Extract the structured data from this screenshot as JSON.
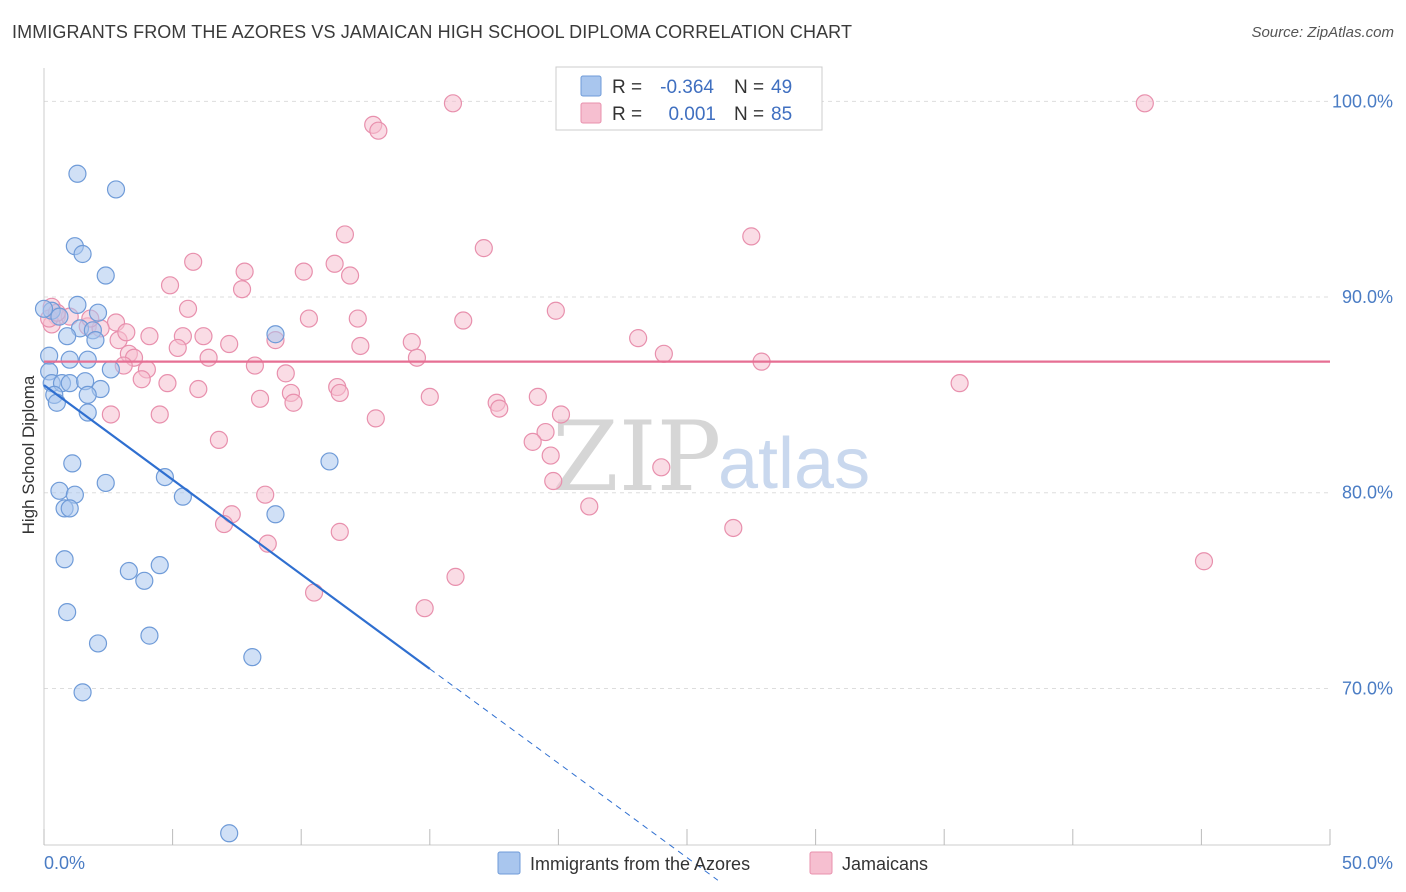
{
  "title": "IMMIGRANTS FROM THE AZORES VS JAMAICAN HIGH SCHOOL DIPLOMA CORRELATION CHART",
  "source": "Source: ZipAtlas.com",
  "watermark": {
    "zip": "ZIP",
    "atlas": "atlas"
  },
  "colors": {
    "blue_fill": "#a9c6ee",
    "blue_stroke": "#6f9bd8",
    "blue_line": "#2f6fd0",
    "pink_fill": "#f6bfd0",
    "pink_stroke": "#e890ad",
    "pink_line": "#e66f93",
    "tick_text": "#4a7cc4",
    "grid": "#dddddd"
  },
  "legend": {
    "rows": [
      {
        "r_label": "R =",
        "r_value": "-0.364",
        "n_label": "N =",
        "n_value": "49"
      },
      {
        "r_label": "R =",
        "r_value": "0.001",
        "n_label": "N =",
        "n_value": "85"
      }
    ]
  },
  "chart_data": {
    "type": "scatter",
    "title": "IMMIGRANTS FROM THE AZORES VS JAMAICAN HIGH SCHOOL DIPLOMA CORRELATION CHART",
    "xlabel": "",
    "ylabel": "High School Diploma",
    "xlim": [
      0,
      50
    ],
    "ylim": [
      62,
      101.5
    ],
    "x_tick_labels": [
      "0.0%",
      "50.0%"
    ],
    "y_ticks": [
      70,
      80,
      90,
      100
    ],
    "y_tick_labels": [
      "70.0%",
      "80.0%",
      "90.0%",
      "100.0%"
    ],
    "grid": true,
    "legend_position": "top-center",
    "series": [
      {
        "name": "Immigrants from the Azores",
        "r": -0.364,
        "n": 49,
        "trend": {
          "x0": 0.0,
          "y0": 85.5,
          "x1": 15.0,
          "y1": 71.0,
          "dash_to_x": 26.2,
          "dash_to_y": 60.2
        },
        "points": [
          [
            1.3,
            96.3
          ],
          [
            2.8,
            95.5
          ],
          [
            1.2,
            92.6
          ],
          [
            1.5,
            92.2
          ],
          [
            2.4,
            91.1
          ],
          [
            1.3,
            89.6
          ],
          [
            2.1,
            89.2
          ],
          [
            0.3,
            89.3
          ],
          [
            0.6,
            89.0
          ],
          [
            1.4,
            88.4
          ],
          [
            1.9,
            88.3
          ],
          [
            0.9,
            88.0
          ],
          [
            2.0,
            87.8
          ],
          [
            9.0,
            88.1
          ],
          [
            0.2,
            87.0
          ],
          [
            1.0,
            86.8
          ],
          [
            1.7,
            86.8
          ],
          [
            2.6,
            86.3
          ],
          [
            0.2,
            86.2
          ],
          [
            0.3,
            85.6
          ],
          [
            0.7,
            85.6
          ],
          [
            1.0,
            85.6
          ],
          [
            1.6,
            85.7
          ],
          [
            2.2,
            85.3
          ],
          [
            0.4,
            85.0
          ],
          [
            0.5,
            84.6
          ],
          [
            1.7,
            84.1
          ],
          [
            1.7,
            85.0
          ],
          [
            1.1,
            81.5
          ],
          [
            11.1,
            81.6
          ],
          [
            4.7,
            80.8
          ],
          [
            2.4,
            80.5
          ],
          [
            0.6,
            80.1
          ],
          [
            1.2,
            79.9
          ],
          [
            5.4,
            79.8
          ],
          [
            0.8,
            79.2
          ],
          [
            1.0,
            79.2
          ],
          [
            9.0,
            78.9
          ],
          [
            0.8,
            76.6
          ],
          [
            3.3,
            76.0
          ],
          [
            4.5,
            76.3
          ],
          [
            3.9,
            75.5
          ],
          [
            0.9,
            73.9
          ],
          [
            2.1,
            72.3
          ],
          [
            4.1,
            72.7
          ],
          [
            8.1,
            71.6
          ],
          [
            1.5,
            69.8
          ],
          [
            7.2,
            62.6
          ],
          [
            0.0,
            89.4
          ]
        ]
      },
      {
        "name": "Jamaicans",
        "r": 0.001,
        "n": 85,
        "trend": {
          "x0": 0.0,
          "y0": 86.7,
          "x1": 50.0,
          "y1": 86.7
        },
        "points": [
          [
            15.9,
            99.9
          ],
          [
            26.3,
            99.9
          ],
          [
            42.8,
            99.9
          ],
          [
            12.8,
            98.8
          ],
          [
            13.0,
            98.5
          ],
          [
            11.7,
            93.2
          ],
          [
            27.5,
            93.1
          ],
          [
            17.1,
            92.5
          ],
          [
            5.8,
            91.8
          ],
          [
            11.3,
            91.7
          ],
          [
            7.8,
            91.3
          ],
          [
            10.1,
            91.3
          ],
          [
            11.9,
            91.1
          ],
          [
            4.9,
            90.6
          ],
          [
            7.7,
            90.4
          ],
          [
            0.3,
            89.5
          ],
          [
            0.5,
            89.0
          ],
          [
            1.0,
            89.0
          ],
          [
            1.7,
            88.5
          ],
          [
            0.3,
            88.6
          ],
          [
            5.6,
            89.4
          ],
          [
            19.9,
            89.3
          ],
          [
            16.3,
            88.8
          ],
          [
            10.3,
            88.9
          ],
          [
            2.8,
            88.7
          ],
          [
            2.9,
            87.8
          ],
          [
            4.1,
            88.0
          ],
          [
            5.4,
            88.0
          ],
          [
            6.2,
            88.0
          ],
          [
            2.2,
            88.4
          ],
          [
            7.2,
            87.6
          ],
          [
            12.3,
            87.5
          ],
          [
            14.3,
            87.7
          ],
          [
            9.0,
            87.8
          ],
          [
            23.1,
            87.9
          ],
          [
            5.2,
            87.4
          ],
          [
            3.3,
            87.1
          ],
          [
            3.5,
            86.9
          ],
          [
            6.4,
            86.9
          ],
          [
            14.5,
            86.9
          ],
          [
            24.1,
            87.1
          ],
          [
            27.9,
            86.7
          ],
          [
            3.1,
            86.5
          ],
          [
            8.2,
            86.5
          ],
          [
            4.0,
            86.3
          ],
          [
            9.4,
            86.1
          ],
          [
            3.8,
            85.8
          ],
          [
            4.8,
            85.6
          ],
          [
            11.4,
            85.4
          ],
          [
            6.0,
            85.3
          ],
          [
            11.5,
            85.1
          ],
          [
            9.6,
            85.1
          ],
          [
            15.0,
            84.9
          ],
          [
            19.2,
            84.9
          ],
          [
            8.4,
            84.8
          ],
          [
            9.7,
            84.6
          ],
          [
            17.6,
            84.6
          ],
          [
            17.7,
            84.3
          ],
          [
            35.6,
            85.6
          ],
          [
            2.6,
            84.0
          ],
          [
            4.5,
            84.0
          ],
          [
            12.9,
            83.8
          ],
          [
            20.1,
            84.0
          ],
          [
            19.5,
            83.1
          ],
          [
            6.8,
            82.7
          ],
          [
            19.0,
            82.6
          ],
          [
            19.7,
            81.9
          ],
          [
            24.0,
            81.3
          ],
          [
            19.8,
            80.6
          ],
          [
            8.6,
            79.9
          ],
          [
            7.3,
            78.9
          ],
          [
            21.2,
            79.3
          ],
          [
            7.0,
            78.4
          ],
          [
            11.5,
            78.0
          ],
          [
            26.8,
            78.2
          ],
          [
            8.7,
            77.4
          ],
          [
            16.0,
            75.7
          ],
          [
            45.1,
            76.5
          ],
          [
            10.5,
            74.9
          ],
          [
            14.8,
            74.1
          ],
          [
            0.2,
            88.9
          ],
          [
            1.8,
            88.9
          ],
          [
            3.2,
            88.2
          ],
          [
            12.2,
            88.9
          ],
          [
            0.5,
            89.2
          ]
        ]
      }
    ]
  }
}
